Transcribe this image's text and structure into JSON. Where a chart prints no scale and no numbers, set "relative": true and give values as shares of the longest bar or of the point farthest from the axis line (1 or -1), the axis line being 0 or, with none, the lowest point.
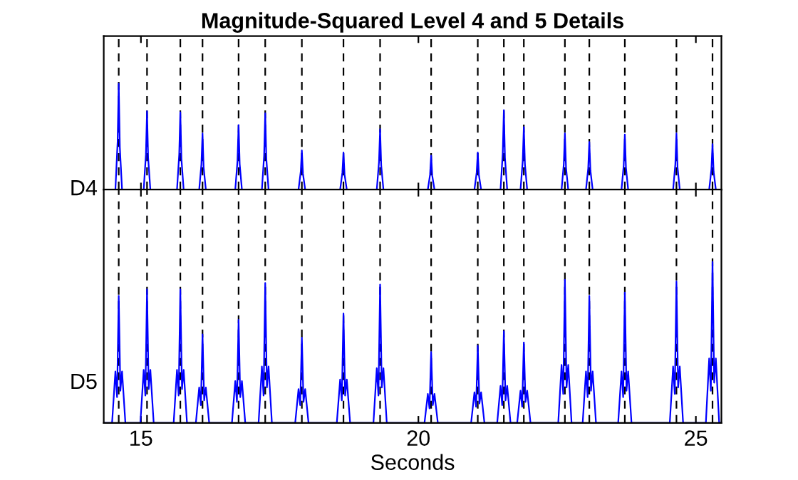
{
  "chart_data": [
    {
      "type": "line",
      "title": "Magnitude-Squared Level 4 and 5 Details",
      "ylabel": "D4",
      "relative": true,
      "xlim": [
        14.33,
        25.46
      ],
      "xticks": [
        15,
        20,
        25
      ],
      "tick_labels": false,
      "legend": false,
      "grid": false,
      "line_style": "solid",
      "ref_lines": [
        {
          "axis": "x",
          "value": 14.6,
          "color": "#000000",
          "line_style": "dashed"
        },
        {
          "axis": "x",
          "value": 15.11,
          "color": "#000000",
          "line_style": "dashed"
        },
        {
          "axis": "x",
          "value": 15.71,
          "color": "#000000",
          "line_style": "dashed"
        },
        {
          "axis": "x",
          "value": 16.11,
          "color": "#000000",
          "line_style": "dashed"
        },
        {
          "axis": "x",
          "value": 16.76,
          "color": "#000000",
          "line_style": "dashed"
        },
        {
          "axis": "x",
          "value": 17.24,
          "color": "#000000",
          "line_style": "dashed"
        },
        {
          "axis": "x",
          "value": 17.9,
          "color": "#000000",
          "line_style": "dashed"
        },
        {
          "axis": "x",
          "value": 18.65,
          "color": "#000000",
          "line_style": "dashed"
        },
        {
          "axis": "x",
          "value": 19.31,
          "color": "#000000",
          "line_style": "dashed"
        },
        {
          "axis": "x",
          "value": 20.23,
          "color": "#000000",
          "line_style": "dashed"
        },
        {
          "axis": "x",
          "value": 21.07,
          "color": "#000000",
          "line_style": "dashed"
        },
        {
          "axis": "x",
          "value": 21.54,
          "color": "#000000",
          "line_style": "dashed"
        },
        {
          "axis": "x",
          "value": 21.9,
          "color": "#000000",
          "line_style": "dashed"
        },
        {
          "axis": "x",
          "value": 22.64,
          "color": "#000000",
          "line_style": "dashed"
        },
        {
          "axis": "x",
          "value": 23.08,
          "color": "#000000",
          "line_style": "dashed"
        },
        {
          "axis": "x",
          "value": 23.72,
          "color": "#000000",
          "line_style": "dashed"
        },
        {
          "axis": "x",
          "value": 24.65,
          "color": "#000000",
          "line_style": "dashed"
        },
        {
          "axis": "x",
          "value": 25.3,
          "color": "#000000",
          "line_style": "dashed"
        }
      ],
      "series": [
        {
          "color": "#0000ff",
          "x": [
            14.33,
            14.54,
            14.58,
            14.6,
            14.62,
            14.66,
            15.05,
            15.09,
            15.11,
            15.13,
            15.17,
            15.65,
            15.69,
            15.71,
            15.73,
            15.77,
            16.05,
            16.09,
            16.11,
            16.13,
            16.17,
            16.7,
            16.74,
            16.76,
            16.78,
            16.82,
            17.18,
            17.22,
            17.24,
            17.26,
            17.3,
            17.84,
            17.88,
            17.9,
            17.92,
            17.96,
            18.59,
            18.63,
            18.65,
            18.67,
            18.71,
            19.25,
            19.29,
            19.31,
            19.33,
            19.37,
            20.17,
            20.21,
            20.23,
            20.25,
            20.29,
            21.01,
            21.05,
            21.07,
            21.09,
            21.13,
            21.48,
            21.52,
            21.54,
            21.56,
            21.6,
            21.84,
            21.88,
            21.9,
            21.92,
            21.96,
            22.58,
            22.62,
            22.64,
            22.66,
            22.7,
            23.02,
            23.06,
            23.08,
            23.1,
            23.14,
            23.66,
            23.7,
            23.72,
            23.74,
            23.78,
            24.59,
            24.63,
            24.65,
            24.67,
            24.71,
            25.24,
            25.28,
            25.3,
            25.32,
            25.36,
            25.46
          ],
          "values": [
            0,
            0,
            0.45,
            1.0,
            0.4,
            0,
            0,
            0.33,
            0.74,
            0.3,
            0,
            0,
            0.33,
            0.73,
            0.29,
            0,
            0,
            0.24,
            0.53,
            0.21,
            0,
            0,
            0.27,
            0.61,
            0.24,
            0,
            0,
            0.32,
            0.72,
            0.29,
            0,
            0,
            0.17,
            0.37,
            0.15,
            0,
            0,
            0.16,
            0.35,
            0.14,
            0,
            0,
            0.26,
            0.57,
            0.23,
            0,
            0,
            0.14,
            0.32,
            0.13,
            0,
            0,
            0.16,
            0.35,
            0.14,
            0,
            0,
            0.34,
            0.75,
            0.3,
            0,
            0,
            0.27,
            0.59,
            0.24,
            0,
            0,
            0.24,
            0.53,
            0.21,
            0,
            0,
            0.2,
            0.45,
            0.18,
            0,
            0,
            0.23,
            0.52,
            0.21,
            0,
            0,
            0.24,
            0.53,
            0.21,
            0,
            0,
            0.19,
            0.43,
            0.17,
            0,
            0
          ]
        }
      ]
    },
    {
      "type": "line",
      "xlabel": "Seconds",
      "ylabel": "D5",
      "relative": true,
      "xlim": [
        14.33,
        25.46
      ],
      "xticks": [
        15,
        20,
        25
      ],
      "tick_labels": "x",
      "legend": false,
      "grid": false,
      "line_style": "solid",
      "ref_lines": [
        {
          "axis": "x",
          "value": 14.6,
          "color": "#000000",
          "line_style": "dashed"
        },
        {
          "axis": "x",
          "value": 15.11,
          "color": "#000000",
          "line_style": "dashed"
        },
        {
          "axis": "x",
          "value": 15.71,
          "color": "#000000",
          "line_style": "dashed"
        },
        {
          "axis": "x",
          "value": 16.11,
          "color": "#000000",
          "line_style": "dashed"
        },
        {
          "axis": "x",
          "value": 16.76,
          "color": "#000000",
          "line_style": "dashed"
        },
        {
          "axis": "x",
          "value": 17.24,
          "color": "#000000",
          "line_style": "dashed"
        },
        {
          "axis": "x",
          "value": 17.9,
          "color": "#000000",
          "line_style": "dashed"
        },
        {
          "axis": "x",
          "value": 18.65,
          "color": "#000000",
          "line_style": "dashed"
        },
        {
          "axis": "x",
          "value": 19.31,
          "color": "#000000",
          "line_style": "dashed"
        },
        {
          "axis": "x",
          "value": 20.23,
          "color": "#000000",
          "line_style": "dashed"
        },
        {
          "axis": "x",
          "value": 21.07,
          "color": "#000000",
          "line_style": "dashed"
        },
        {
          "axis": "x",
          "value": 21.54,
          "color": "#000000",
          "line_style": "dashed"
        },
        {
          "axis": "x",
          "value": 21.9,
          "color": "#000000",
          "line_style": "dashed"
        },
        {
          "axis": "x",
          "value": 22.64,
          "color": "#000000",
          "line_style": "dashed"
        },
        {
          "axis": "x",
          "value": 23.08,
          "color": "#000000",
          "line_style": "dashed"
        },
        {
          "axis": "x",
          "value": 23.72,
          "color": "#000000",
          "line_style": "dashed"
        },
        {
          "axis": "x",
          "value": 24.65,
          "color": "#000000",
          "line_style": "dashed"
        },
        {
          "axis": "x",
          "value": 25.3,
          "color": "#000000",
          "line_style": "dashed"
        }
      ],
      "series": [
        {
          "color": "#0000ff",
          "x": [
            14.33,
            14.48,
            14.54,
            14.57,
            14.6,
            14.63,
            14.66,
            14.72,
            14.99,
            15.05,
            15.08,
            15.11,
            15.14,
            15.17,
            15.23,
            15.59,
            15.65,
            15.68,
            15.71,
            15.74,
            15.77,
            15.83,
            15.99,
            16.05,
            16.08,
            16.11,
            16.14,
            16.17,
            16.23,
            16.64,
            16.7,
            16.73,
            16.76,
            16.79,
            16.82,
            16.88,
            17.12,
            17.18,
            17.21,
            17.24,
            17.27,
            17.3,
            17.36,
            17.78,
            17.84,
            17.87,
            17.9,
            17.93,
            17.96,
            18.02,
            18.53,
            18.59,
            18.62,
            18.65,
            18.68,
            18.71,
            18.77,
            19.19,
            19.25,
            19.28,
            19.31,
            19.34,
            19.37,
            19.43,
            20.11,
            20.17,
            20.2,
            20.23,
            20.26,
            20.29,
            20.35,
            20.95,
            21.01,
            21.04,
            21.07,
            21.1,
            21.13,
            21.19,
            21.42,
            21.48,
            21.51,
            21.54,
            21.57,
            21.6,
            21.66,
            21.78,
            21.84,
            21.87,
            21.9,
            21.93,
            21.96,
            22.02,
            22.52,
            22.58,
            22.61,
            22.64,
            22.67,
            22.7,
            22.76,
            22.96,
            23.02,
            23.05,
            23.08,
            23.11,
            23.14,
            23.2,
            23.6,
            23.66,
            23.69,
            23.72,
            23.75,
            23.78,
            23.84,
            24.53,
            24.59,
            24.62,
            24.65,
            24.68,
            24.71,
            24.77,
            25.18,
            25.24,
            25.27,
            25.3,
            25.33,
            25.36,
            25.42,
            25.46
          ],
          "values": [
            0,
            0,
            0.32,
            0.16,
            0.79,
            0.2,
            0.32,
            0,
            0,
            0.33,
            0.17,
            0.83,
            0.21,
            0.33,
            0,
            0,
            0.33,
            0.17,
            0.83,
            0.21,
            0.33,
            0,
            0,
            0.22,
            0.11,
            0.55,
            0.14,
            0.22,
            0,
            0,
            0.26,
            0.13,
            0.64,
            0.16,
            0.26,
            0,
            0,
            0.35,
            0.17,
            0.87,
            0.22,
            0.35,
            0,
            0,
            0.21,
            0.11,
            0.53,
            0.13,
            0.21,
            0,
            0,
            0.27,
            0.14,
            0.68,
            0.17,
            0.27,
            0,
            0,
            0.34,
            0.17,
            0.86,
            0.22,
            0.34,
            0,
            0,
            0.18,
            0.09,
            0.44,
            0.11,
            0.18,
            0,
            0,
            0.19,
            0.1,
            0.48,
            0.12,
            0.19,
            0,
            0,
            0.23,
            0.11,
            0.57,
            0.14,
            0.23,
            0,
            0,
            0.2,
            0.1,
            0.5,
            0.13,
            0.2,
            0,
            0,
            0.36,
            0.18,
            0.89,
            0.22,
            0.36,
            0,
            0,
            0.32,
            0.16,
            0.79,
            0.2,
            0.32,
            0,
            0,
            0.32,
            0.16,
            0.81,
            0.2,
            0.32,
            0,
            0,
            0.35,
            0.18,
            0.88,
            0.22,
            0.35,
            0,
            0,
            0.4,
            0.2,
            1.0,
            0.25,
            0.4,
            0,
            0
          ]
        }
      ]
    }
  ]
}
